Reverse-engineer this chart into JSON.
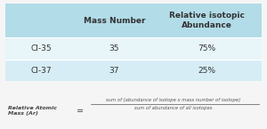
{
  "table_headers": [
    "",
    "Mass Number",
    "Relative isotopic\nAbundance"
  ],
  "table_rows": [
    [
      "Cl-35",
      "35",
      "75%"
    ],
    [
      "Cl-37",
      "37",
      "25%"
    ]
  ],
  "header_bg": "#b2dce8",
  "row1_bg": "#e8f5f9",
  "row2_bg": "#d6edf5",
  "formula_left": "Relative Atomic\nMass (Ar)",
  "formula_eq": "=",
  "formula_numerator": "sum of (abundance of isotope x mass number of isotope)",
  "formula_denominator": "sum of abundance of all isotopes",
  "bg_color": "#f5f5f5"
}
